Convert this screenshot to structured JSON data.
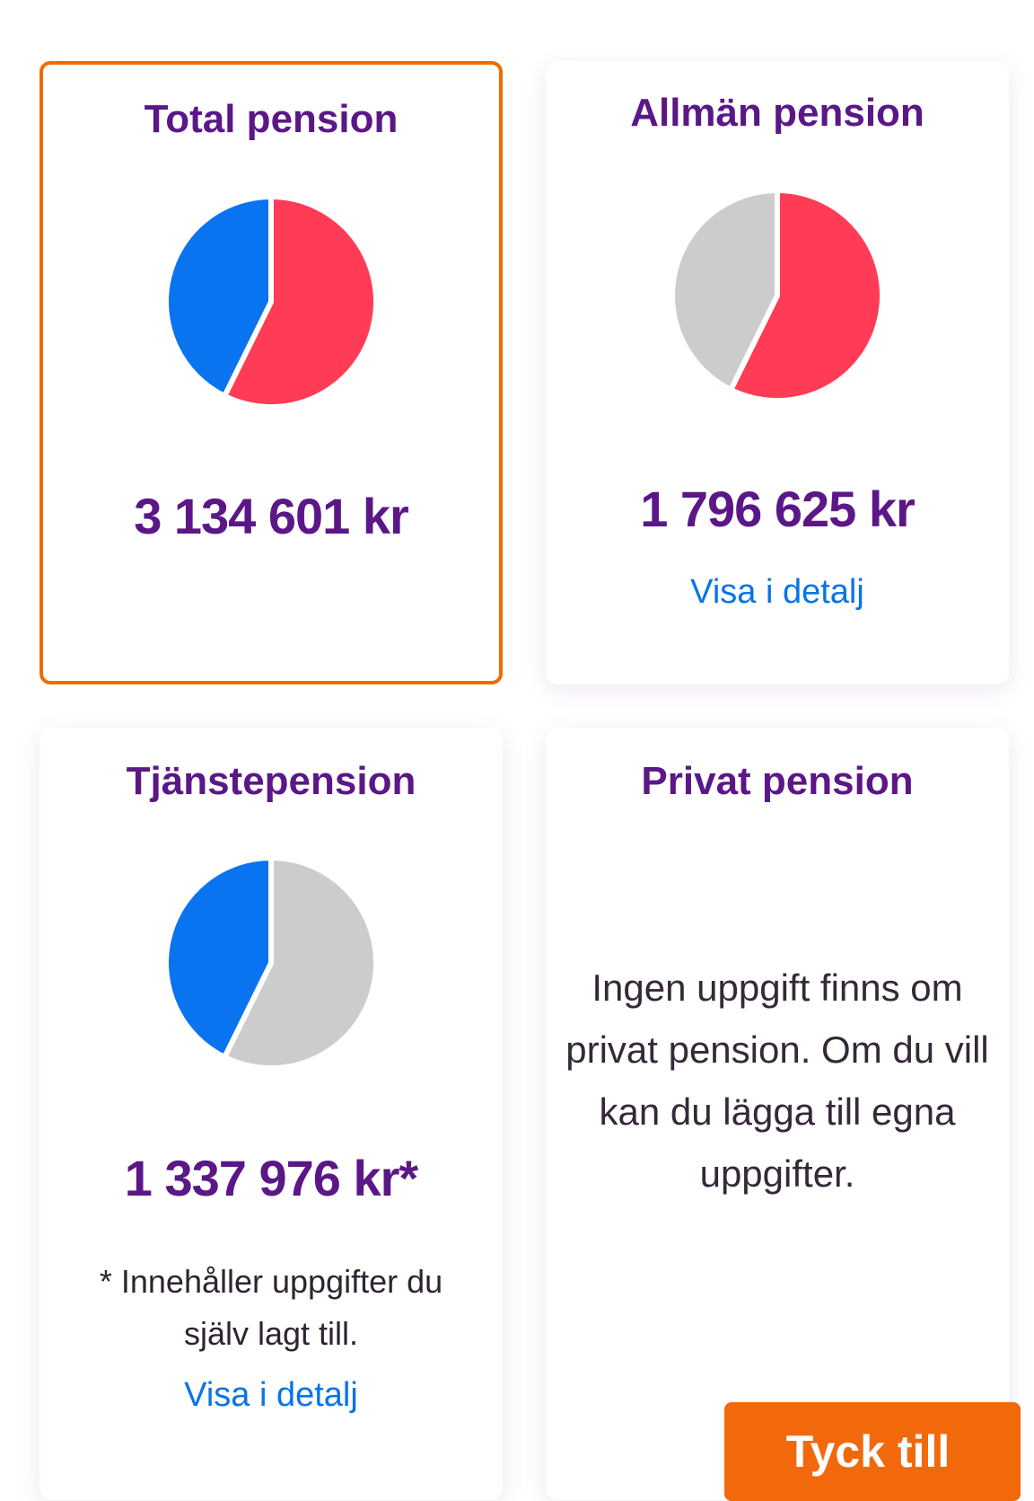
{
  "cards": [
    {
      "title": "Total pension",
      "amount": "3 134 601 kr",
      "selected": true,
      "pie": {
        "slices": [
          {
            "share": 0.573,
            "color": "#ff3b55"
          },
          {
            "share": 0.427,
            "color": "#0a73f0"
          }
        ]
      }
    },
    {
      "title": "Allmän pension",
      "amount": "1 796 625 kr",
      "link": "Visa i detalj",
      "pie": {
        "slices": [
          {
            "share": 0.573,
            "color": "#ff3b55"
          },
          {
            "share": 0.427,
            "color": "#cccccc"
          }
        ]
      }
    },
    {
      "title": "Tjänstepension",
      "amount": "1 337 976 kr*",
      "note": "* Innehåller uppgifter du själv lagt till.",
      "link": "Visa i detalj",
      "pie": {
        "slices": [
          {
            "share": 0.573,
            "color": "#cccccc"
          },
          {
            "share": 0.427,
            "color": "#0a73f0"
          }
        ]
      }
    },
    {
      "title": "Privat pension",
      "info": "Ingen uppgift finns om privat pension. Om du vill kan du lägga till egna uppgifter."
    }
  ],
  "feedback_button": "Tyck till",
  "colors": {
    "title": "#5b1787",
    "link": "#0a73e8",
    "selected_border": "#ef6c00",
    "button": "#f2690c"
  }
}
